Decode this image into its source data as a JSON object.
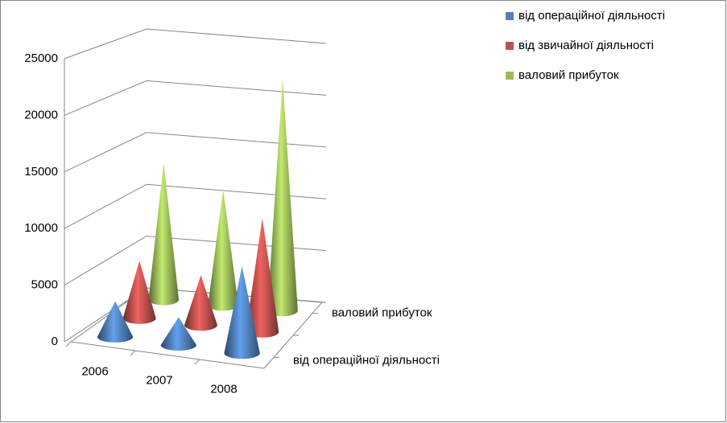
{
  "chart_data": {
    "type": "cone",
    "categories": [
      "2006",
      "2007",
      "2008"
    ],
    "depth_categories": [
      "від операційної діяльності",
      null,
      "валовий прибуток"
    ],
    "series": [
      {
        "name": "від операційної діяльності",
        "color": "#4f81bd",
        "values": [
          3200,
          2500,
          7800
        ]
      },
      {
        "name": "від звичайної діяльності",
        "color": "#c0504d",
        "values": [
          5300,
          4600,
          10500
        ]
      },
      {
        "name": "валовий прибуток",
        "color": "#9bbb59",
        "values": [
          13000,
          11000,
          22000
        ]
      }
    ],
    "ylim": [
      0,
      25000
    ],
    "yticks": [
      0,
      5000,
      10000,
      15000,
      20000,
      25000
    ],
    "grid": true,
    "legend": "top-right"
  }
}
